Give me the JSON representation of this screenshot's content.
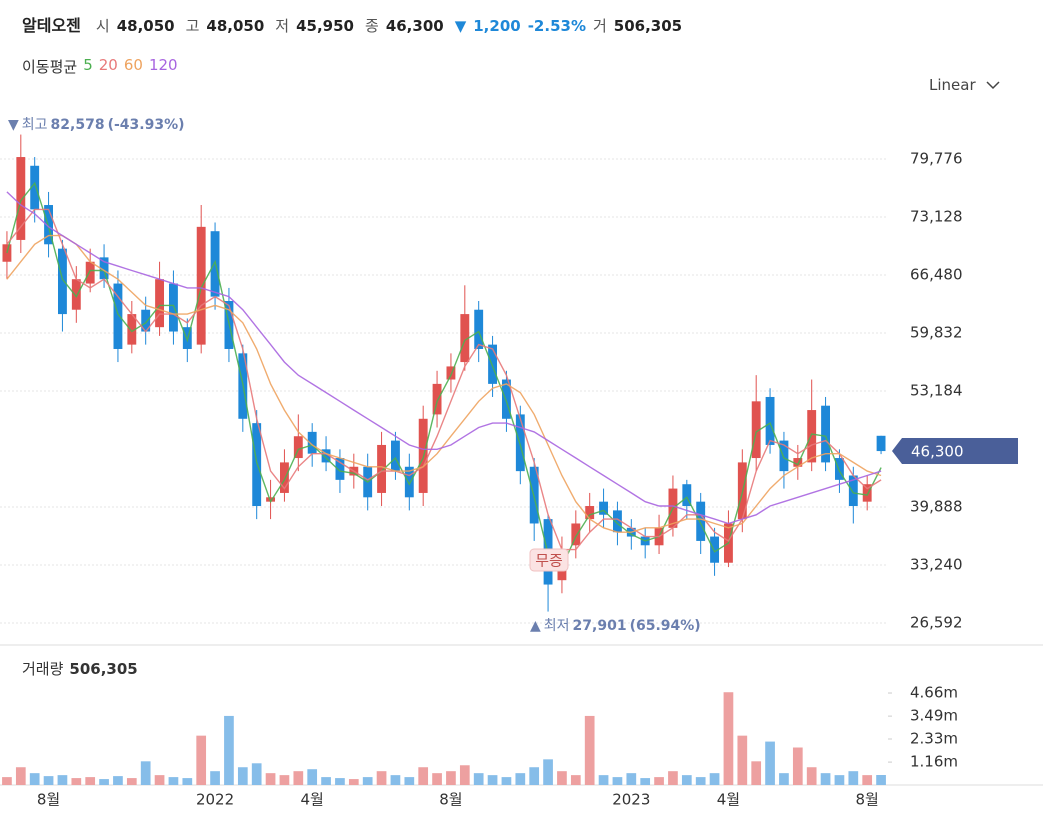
{
  "chart_data": {
    "type": "candlestick",
    "header": {
      "name": "알테오젠",
      "items": [
        {
          "label": "시",
          "value": "48,050"
        },
        {
          "label": "고",
          "value": "48,050"
        },
        {
          "label": "저",
          "value": "45,950"
        },
        {
          "label": "종",
          "value": "46,300"
        }
      ],
      "change": {
        "arrow": "▼",
        "amount": "1,200",
        "percent": "-2.53%"
      },
      "volume": {
        "label": "거",
        "value": "506,305"
      }
    },
    "ma_label": "이동평균",
    "scale_label": "Linear",
    "up_color": "#e0524f",
    "down_color": "#1e88d8",
    "categories": [
      null,
      null,
      null,
      "8월",
      null,
      null,
      null,
      null,
      null,
      null,
      null,
      null,
      null,
      null,
      null,
      "2022",
      null,
      null,
      null,
      null,
      null,
      null,
      "4월",
      null,
      null,
      null,
      null,
      null,
      null,
      null,
      null,
      null,
      "8월",
      null,
      null,
      null,
      null,
      null,
      null,
      null,
      null,
      null,
      null,
      null,
      null,
      "2023",
      null,
      null,
      null,
      null,
      null,
      null,
      "4월",
      null,
      null,
      null,
      null,
      null,
      null,
      null,
      null,
      null,
      "8월",
      null
    ],
    "open": [
      68000,
      70500,
      79000,
      74500,
      69500,
      62500,
      65500,
      68500,
      65500,
      58500,
      62500,
      60500,
      65500,
      60500,
      58500,
      71500,
      63500,
      57500,
      49500,
      40500,
      41500,
      45500,
      48500,
      46500,
      45500,
      43500,
      44500,
      41500,
      47500,
      44500,
      41500,
      50500,
      54500,
      56500,
      62500,
      58500,
      54500,
      50500,
      44500,
      38500,
      31500,
      35500,
      38500,
      40500,
      39500,
      37500,
      36500,
      35500,
      37500,
      42500,
      40500,
      36500,
      33500,
      38500,
      45500,
      52500,
      47500,
      44500,
      45000,
      51500,
      45500,
      43500,
      40500,
      48050
    ],
    "high": [
      71500,
      82578,
      80000,
      76000,
      70500,
      67500,
      69500,
      70000,
      67000,
      63500,
      64000,
      68000,
      67000,
      61500,
      74500,
      72500,
      65000,
      58500,
      51000,
      43000,
      46500,
      50500,
      49500,
      48000,
      46500,
      46000,
      46000,
      48500,
      48500,
      46000,
      51500,
      55500,
      57500,
      65300,
      63500,
      59500,
      55500,
      51500,
      45500,
      39000,
      36500,
      39500,
      41500,
      42000,
      40500,
      38500,
      37500,
      39000,
      43500,
      43000,
      41500,
      37500,
      39500,
      46500,
      55000,
      53500,
      48500,
      47000,
      54500,
      52500,
      46500,
      44500,
      43500,
      48050
    ],
    "low": [
      66000,
      69000,
      72500,
      68500,
      60000,
      61000,
      64500,
      65000,
      56500,
      57500,
      58500,
      59500,
      58500,
      56500,
      57500,
      62500,
      56500,
      48500,
      38500,
      38500,
      40500,
      44000,
      44500,
      44000,
      41500,
      42000,
      39500,
      40000,
      43000,
      39500,
      40000,
      49000,
      53000,
      55500,
      56500,
      52500,
      48500,
      42500,
      36000,
      27901,
      30000,
      34000,
      37000,
      37500,
      35500,
      35000,
      34000,
      34500,
      36500,
      38500,
      34500,
      32000,
      33000,
      37000,
      44000,
      46000,
      42000,
      43000,
      44000,
      44000,
      41500,
      38000,
      39500,
      45950
    ],
    "close": [
      70000,
      80000,
      74000,
      70000,
      62000,
      66000,
      68000,
      66000,
      58000,
      62000,
      60000,
      66000,
      60000,
      58000,
      72000,
      64000,
      58000,
      50000,
      40000,
      41000,
      45000,
      48000,
      46000,
      45000,
      43000,
      44500,
      41000,
      47000,
      44000,
      41000,
      50000,
      54000,
      56000,
      62000,
      58000,
      54000,
      50000,
      44000,
      38000,
      31000,
      35000,
      38000,
      40000,
      39000,
      37000,
      36500,
      35500,
      37500,
      42000,
      40000,
      36000,
      33500,
      38000,
      45000,
      52000,
      47000,
      44000,
      45500,
      51000,
      45000,
      43000,
      40000,
      42500,
      46300
    ],
    "volume": [
      400000,
      900000,
      600000,
      450000,
      500000,
      350000,
      400000,
      300000,
      450000,
      350000,
      1200000,
      500000,
      400000,
      350000,
      2500000,
      700000,
      3500000,
      900000,
      1100000,
      600000,
      500000,
      700000,
      800000,
      400000,
      350000,
      300000,
      400000,
      700000,
      500000,
      400000,
      900000,
      600000,
      700000,
      1000000,
      600000,
      500000,
      400000,
      600000,
      900000,
      1300000,
      700000,
      500000,
      3500000,
      500000,
      400000,
      600000,
      350000,
      400000,
      700000,
      500000,
      400000,
      600000,
      4700000,
      2500000,
      1200000,
      2200000,
      600000,
      1900000,
      900000,
      600000,
      500000,
      700000,
      500000,
      506305
    ],
    "moving_averages": [
      {
        "name": "5",
        "color": "#4caf50",
        "values": [
          69000,
          75000,
          77000,
          72000,
          66000,
          64000,
          67000,
          67000,
          62000,
          60000,
          61000,
          63000,
          63000,
          59000,
          65000,
          68000,
          61000,
          54000,
          45000,
          40500,
          43000,
          46500,
          47000,
          45500,
          44000,
          43750,
          42750,
          44000,
          45500,
          42500,
          45500,
          52000,
          55000,
          59000,
          60000,
          56000,
          52000,
          47000,
          41000,
          34500,
          33000,
          36500,
          39000,
          39500,
          38000,
          36750,
          36000,
          36500,
          39750,
          41000,
          38000,
          34750,
          35750,
          41500,
          48500,
          49500,
          45500,
          44750,
          48250,
          48000,
          44000,
          41500,
          41250,
          44400
        ]
      },
      {
        "name": "20",
        "color": "#e8797a",
        "values": [
          70000,
          72000,
          74000,
          74000,
          70000,
          66000,
          65000,
          66000,
          64000,
          62000,
          60000,
          62000,
          62000,
          61000,
          63000,
          64000,
          63000,
          58000,
          50000,
          44000,
          42000,
          44500,
          46000,
          46000,
          45000,
          44000,
          43000,
          44000,
          44000,
          43500,
          44500,
          48000,
          52000,
          56000,
          58500,
          58000,
          55000,
          50000,
          45000,
          39000,
          35000,
          35000,
          37000,
          38500,
          38500,
          37500,
          36500,
          36500,
          37500,
          39000,
          39000,
          37000,
          36000,
          38500,
          44000,
          47500,
          47000,
          46000,
          47000,
          47500,
          46000,
          43500,
          42000,
          43000
        ]
      },
      {
        "name": "60",
        "color": "#eea35f",
        "values": [
          66000,
          68000,
          70000,
          71000,
          71000,
          70000,
          68000,
          67000,
          66000,
          64500,
          63000,
          62500,
          62000,
          62000,
          62500,
          63000,
          62500,
          61000,
          58000,
          54000,
          51000,
          48500,
          47000,
          46000,
          45500,
          45000,
          44500,
          44500,
          44000,
          44000,
          44500,
          46000,
          48000,
          50000,
          52000,
          53500,
          54000,
          53000,
          50500,
          47000,
          43500,
          40500,
          38500,
          37500,
          37000,
          37000,
          37500,
          37500,
          38000,
          38500,
          38500,
          38000,
          37500,
          38000,
          40000,
          42000,
          43500,
          44500,
          45500,
          46000,
          46000,
          45000,
          44000,
          43500
        ]
      },
      {
        "name": "120",
        "color": "#a865e0",
        "values": [
          76000,
          74500,
          73500,
          72000,
          71000,
          70000,
          69000,
          68000,
          67500,
          67000,
          66500,
          66000,
          65500,
          65000,
          65000,
          64500,
          64000,
          62500,
          60500,
          58500,
          56500,
          55000,
          54000,
          53000,
          52000,
          51000,
          50000,
          49000,
          48000,
          47000,
          46500,
          46500,
          47000,
          48000,
          49000,
          49500,
          49500,
          49000,
          48500,
          47500,
          46500,
          45500,
          44500,
          43500,
          42500,
          41500,
          40500,
          40000,
          40000,
          39500,
          39000,
          38500,
          38000,
          38500,
          39000,
          40000,
          40500,
          41000,
          41500,
          42000,
          42500,
          43000,
          43500,
          44000
        ]
      }
    ],
    "ylim": [
      24644,
      83100
    ],
    "yticks": [
      {
        "value": 26592,
        "label": "26,592"
      },
      {
        "value": 33240,
        "label": "33,240"
      },
      {
        "value": 39888,
        "label": "39,888"
      },
      {
        "value": 53184,
        "label": "53,184"
      },
      {
        "value": 59832,
        "label": "59,832"
      },
      {
        "value": 66480,
        "label": "66,480"
      },
      {
        "value": 73128,
        "label": "73,128"
      },
      {
        "value": 79776,
        "label": "79,776"
      }
    ],
    "volume_label": "거래량",
    "volume_value": "506,305",
    "vlim": [
      0,
      6840000
    ],
    "vticks": [
      {
        "value": 1160000,
        "label": "1.16m"
      },
      {
        "value": 2330000,
        "label": "2.33m"
      },
      {
        "value": 3490000,
        "label": "3.49m"
      },
      {
        "value": 4660000,
        "label": "4.66m"
      }
    ],
    "current_price": {
      "value": 46300,
      "label": "46,300"
    },
    "max_note": {
      "marker": "▼",
      "label": "최고",
      "value": "82,578",
      "change": "(-43.93%)"
    },
    "min_note": {
      "marker": "▲",
      "label": "최저",
      "value": "27,901",
      "change": "(65.94%)"
    },
    "event_label": "무증",
    "grid": true
  }
}
